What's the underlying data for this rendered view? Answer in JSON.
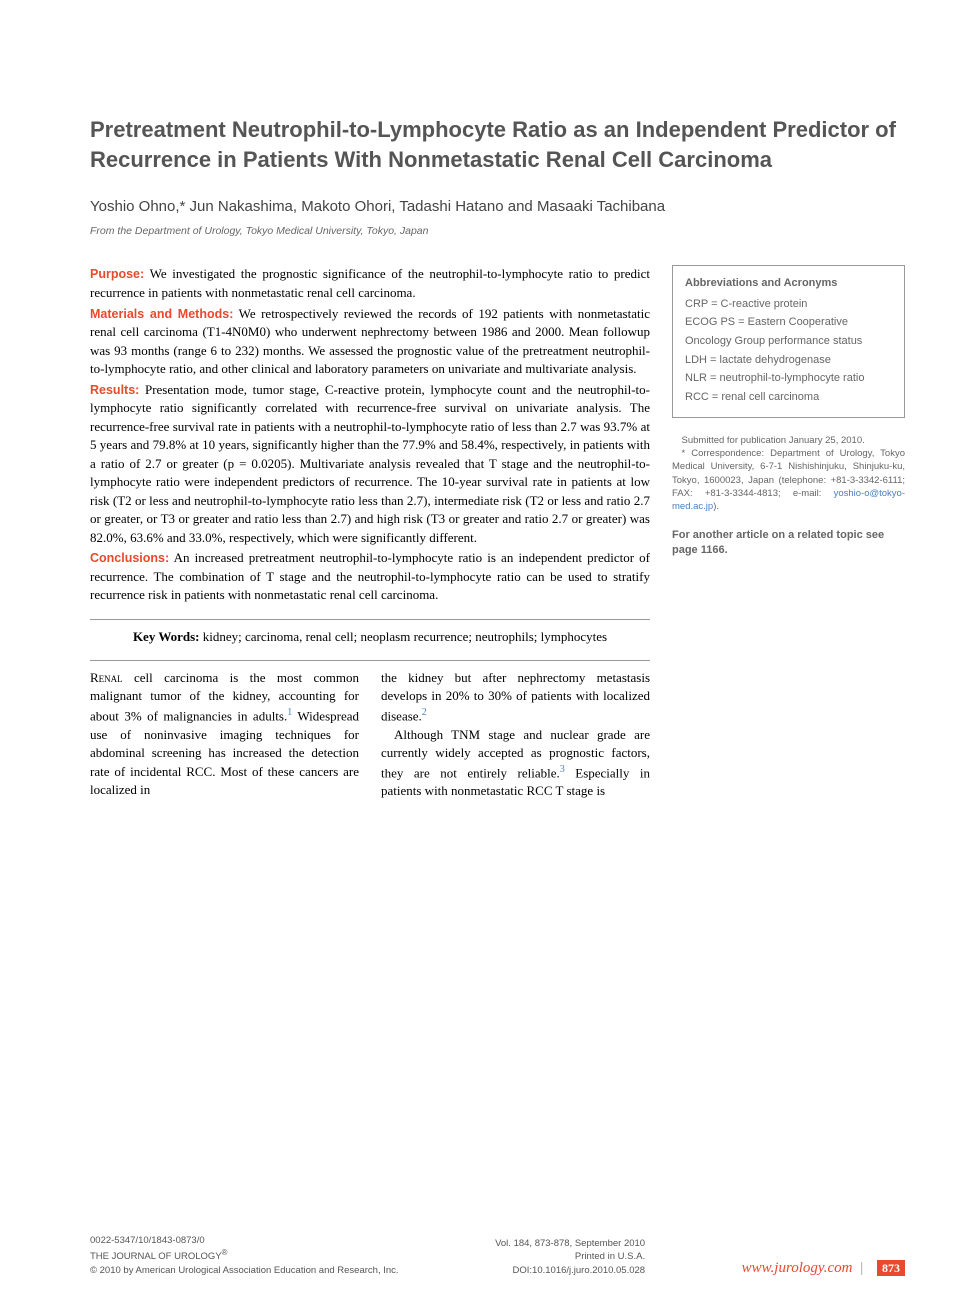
{
  "title": "Pretreatment Neutrophil-to-Lymphocyte Ratio as an Independent Predictor of Recurrence in Patients With Nonmetastatic Renal Cell Carcinoma",
  "authors": "Yoshio Ohno,* Jun Nakashima, Makoto Ohori, Tadashi Hatano and Masaaki Tachibana",
  "affiliation": "From the Department of Urology, Tokyo Medical University, Tokyo, Japan",
  "abstract": {
    "purpose_label": "Purpose:",
    "purpose": " We investigated the prognostic significance of the neutrophil-to-lymphocyte ratio to predict recurrence in patients with nonmetastatic renal cell carcinoma.",
    "methods_label": "Materials and Methods:",
    "methods": " We retrospectively reviewed the records of 192 patients with nonmetastatic renal cell carcinoma (T1-4N0M0) who underwent nephrectomy between 1986 and 2000. Mean followup was 93 months (range 6 to 232) months. We assessed the prognostic value of the pretreatment neutrophil-to-lymphocyte ratio, and other clinical and laboratory parameters on univariate and multivariate analysis.",
    "results_label": "Results:",
    "results": " Presentation mode, tumor stage, C-reactive protein, lymphocyte count and the neutrophil-to-lymphocyte ratio significantly correlated with recurrence-free survival on univariate analysis. The recurrence-free survival rate in patients with a neutrophil-to-lymphocyte ratio of less than 2.7 was 93.7% at 5 years and 79.8% at 10 years, significantly higher than the 77.9% and 58.4%, respectively, in patients with a ratio of 2.7 or greater (p = 0.0205). Multivariate analysis revealed that T stage and the neutrophil-to-lymphocyte ratio were independent predictors of recurrence. The 10-year survival rate in patients at low risk (T2 or less and neutrophil-to-lymphocyte ratio less than 2.7), intermediate risk (T2 or less and ratio 2.7 or greater, or T3 or greater and ratio less than 2.7) and high risk (T3 or greater and ratio 2.7 or greater) was 82.0%, 63.6% and 33.0%, respectively, which were significantly different.",
    "conclusions_label": "Conclusions:",
    "conclusions": " An increased pretreatment neutrophil-to-lymphocyte ratio is an independent predictor of recurrence. The combination of T stage and the neutrophil-to-lymphocyte ratio can be used to stratify recurrence risk in patients with nonmetastatic renal cell carcinoma."
  },
  "keywords_label": "Key Words:",
  "keywords": " kidney; carcinoma, renal cell; neoplasm recurrence; neutrophils; lymphocytes",
  "body": {
    "col1_p1_lead": "Renal",
    "col1_p1": " cell carcinoma is the most common malignant tumor of the kidney, accounting for about 3% of malignancies in adults.",
    "col1_p1b": " Widespread use of noninvasive imaging techniques for abdominal screening has increased the detection rate of incidental RCC. Most of these cancers are localized in",
    "col2_p1": "the kidney but after nephrectomy metastasis develops in 20% to 30% of patients with localized disease.",
    "col2_p2": "Although TNM stage and nuclear grade are currently widely accepted as prognostic factors, they are not entirely reliable.",
    "col2_p2b": " Especially in patients with nonmetastatic RCC T stage is",
    "ref1": "1",
    "ref2": "2",
    "ref3": "3"
  },
  "abbrev": {
    "title": "Abbreviations and Acronyms",
    "crp": "CRP = C-reactive protein",
    "ecog": "ECOG PS = Eastern Cooperative Oncology Group performance status",
    "ldh": "LDH = lactate dehydrogenase",
    "nlr": "NLR = neutrophil-to-lymphocyte ratio",
    "rcc": "RCC = renal cell carcinoma"
  },
  "submission": {
    "submitted": "Submitted for publication January 25, 2010.",
    "correspondence": "* Correspondence: Department of Urology, Tokyo Medical University, 6-7-1 Nishishinjuku, Shinjuku-ku, Tokyo, 1600023, Japan (telephone: +81-3-3342-6111; FAX: +81-3-3344-4813; e-mail: ",
    "email": "yoshio-o@tokyo-med.ac.jp",
    "close": ")."
  },
  "related": "For another article on a related topic see page 1166.",
  "footer": {
    "left1": "0022-5347/10/1843-0873/0",
    "left2": "THE JOURNAL OF UROLOGY",
    "left2sup": "®",
    "left3": "© 2010 by American Urological Association Education and Research, Inc.",
    "center1": "Vol. 184, 873-878, September 2010",
    "center2": "Printed in U.S.A.",
    "center3": "DOI:10.1016/j.juro.2010.05.028",
    "url": "www.jurology.com",
    "page": "873"
  },
  "colors": {
    "accent": "#e8492f",
    "text": "#000000",
    "gray_text": "#666666",
    "link": "#4a7fbf",
    "border": "#999999",
    "background": "#ffffff"
  },
  "typography": {
    "title_fontsize": 22,
    "author_fontsize": 15,
    "body_fontsize": 13,
    "sidebar_fontsize": 11,
    "footer_fontsize": 9.5
  }
}
